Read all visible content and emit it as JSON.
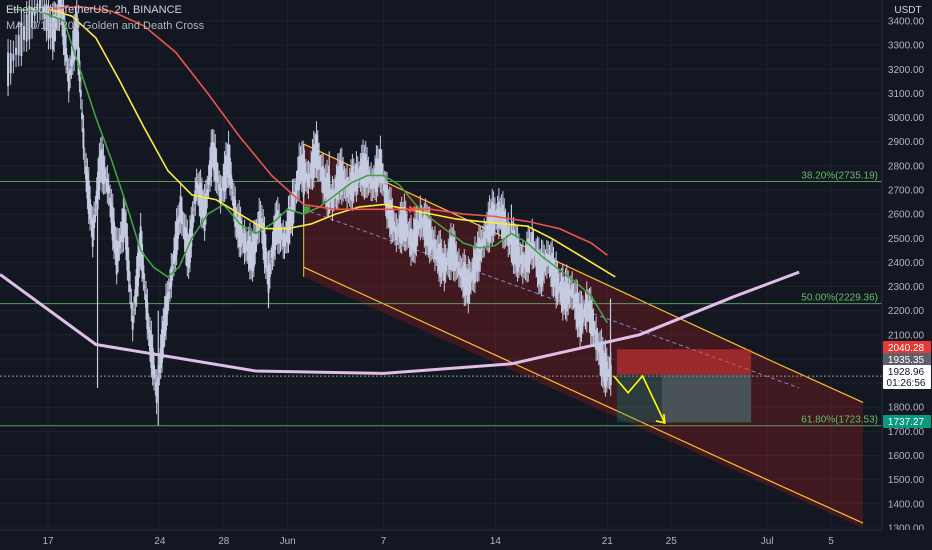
{
  "header": {
    "symbol_line": "Ethereum / TetherUS, 2h, BINANCE",
    "indicator_line": "MA 50/100/200 Golden and Death Cross"
  },
  "price_axis": {
    "currency": "USDT",
    "ticks": [
      "3400.00",
      "3300.00",
      "3200.00",
      "3100.00",
      "3000.00",
      "2900.00",
      "2800.00",
      "2700.00",
      "2600.00",
      "2500.00",
      "2400.00",
      "2300.00",
      "2200.00",
      "2100.00",
      "2000.00",
      "1900.00",
      "1800.00",
      "1700.00",
      "1600.00",
      "1500.00",
      "1400.00",
      "1300.00"
    ],
    "tags": [
      {
        "value": 2040.28,
        "label": "2040.28",
        "color": "#e53935"
      },
      {
        "value": 1935.35,
        "label": "1935.35",
        "color": "#5d606b"
      },
      {
        "value": 1928.96,
        "label": "1928.96",
        "sub": "01:26:56",
        "color": "#ffffff"
      },
      {
        "value": 1737.27,
        "label": "1737.27",
        "color": "#089981"
      }
    ]
  },
  "time_axis": {
    "ticks": [
      {
        "day": 17,
        "label": "17"
      },
      {
        "day": 24,
        "label": "24"
      },
      {
        "day": 28,
        "label": "28"
      },
      {
        "day": 32,
        "label": "Jun"
      },
      {
        "day": 38,
        "label": "7"
      },
      {
        "day": 45,
        "label": "14"
      },
      {
        "day": 52,
        "label": "21"
      },
      {
        "day": 56,
        "label": "25"
      },
      {
        "day": 62,
        "label": "Jul"
      },
      {
        "day": 66,
        "label": "5"
      }
    ]
  },
  "colors": {
    "background": "#131722",
    "candles": "#c5cbe0",
    "ma50": "#43a047",
    "ma100": "#ffeb3b",
    "ma200": "#ef5350",
    "arc": "#e1bee7",
    "channel": "#fbc02d",
    "fib": "#66bb6a",
    "projection": "#ffff00"
  },
  "chart_data": {
    "type": "candlestick",
    "symbol": "ETH/USDT",
    "timeframe": "2h",
    "ylim": [
      1300,
      3450
    ],
    "xlim": [
      14,
      68
    ],
    "price_path": [
      [
        14.5,
        3200
      ],
      [
        15.5,
        3350
      ],
      [
        16.5,
        3480
      ],
      [
        17.3,
        3350
      ],
      [
        17.8,
        3480
      ],
      [
        18.3,
        3150
      ],
      [
        18.8,
        3380
      ],
      [
        19.3,
        2820
      ],
      [
        19.8,
        2520
      ],
      [
        20.3,
        2820
      ],
      [
        20.8,
        2700
      ],
      [
        21.3,
        2420
      ],
      [
        21.8,
        2580
      ],
      [
        22.3,
        2150
      ],
      [
        22.8,
        2480
      ],
      [
        23.3,
        2120
      ],
      [
        23.8,
        1860
      ],
      [
        24.3,
        2150
      ],
      [
        24.8,
        2380
      ],
      [
        25.3,
        2620
      ],
      [
        25.8,
        2420
      ],
      [
        26.3,
        2720
      ],
      [
        26.8,
        2600
      ],
      [
        27.3,
        2870
      ],
      [
        27.8,
        2680
      ],
      [
        28.3,
        2820
      ],
      [
        28.8,
        2560
      ],
      [
        29.3,
        2480
      ],
      [
        29.8,
        2420
      ],
      [
        30.3,
        2600
      ],
      [
        30.8,
        2330
      ],
      [
        31.3,
        2560
      ],
      [
        31.8,
        2480
      ],
      [
        32.3,
        2620
      ],
      [
        32.8,
        2800
      ],
      [
        33.3,
        2740
      ],
      [
        33.8,
        2860
      ],
      [
        34.3,
        2720
      ],
      [
        34.8,
        2660
      ],
      [
        35.3,
        2760
      ],
      [
        35.8,
        2700
      ],
      [
        36.3,
        2750
      ],
      [
        36.8,
        2790
      ],
      [
        37.3,
        2720
      ],
      [
        37.8,
        2800
      ],
      [
        38.3,
        2620
      ],
      [
        38.8,
        2520
      ],
      [
        39.3,
        2560
      ],
      [
        39.8,
        2470
      ],
      [
        40.3,
        2580
      ],
      [
        40.8,
        2520
      ],
      [
        41.3,
        2440
      ],
      [
        41.8,
        2380
      ],
      [
        42.3,
        2450
      ],
      [
        42.8,
        2360
      ],
      [
        43.3,
        2300
      ],
      [
        43.8,
        2400
      ],
      [
        44.3,
        2500
      ],
      [
        44.8,
        2580
      ],
      [
        45.3,
        2600
      ],
      [
        45.8,
        2510
      ],
      [
        46.3,
        2440
      ],
      [
        46.8,
        2390
      ],
      [
        47.3,
        2470
      ],
      [
        47.8,
        2360
      ],
      [
        48.3,
        2420
      ],
      [
        48.8,
        2320
      ],
      [
        49.3,
        2260
      ],
      [
        49.8,
        2280
      ],
      [
        50.3,
        2160
      ],
      [
        50.8,
        2220
      ],
      [
        51.3,
        2080
      ],
      [
        51.8,
        1960
      ],
      [
        52.3,
        1928.96
      ]
    ],
    "candle_wicks": [
      [
        20.1,
        1880,
        2700
      ],
      [
        23.9,
        1723,
        2200
      ],
      [
        30.8,
        2210,
        2450
      ],
      [
        33.0,
        2560,
        2890
      ],
      [
        34.6,
        2600,
        2860
      ],
      [
        36.8,
        2660,
        2850
      ],
      [
        46.0,
        2400,
        2640
      ],
      [
        52.2,
        1900,
        2250
      ]
    ],
    "series": [
      {
        "name": "MA 50",
        "color": "#43a047",
        "points": [
          [
            14.5,
            3450
          ],
          [
            16.5,
            3440
          ],
          [
            18,
            3400
          ],
          [
            19,
            3200
          ],
          [
            20,
            3000
          ],
          [
            21,
            2820
          ],
          [
            22,
            2620
          ],
          [
            22.8,
            2450
          ],
          [
            23.6,
            2380
          ],
          [
            24.5,
            2340
          ],
          [
            25.2,
            2380
          ],
          [
            26,
            2500
          ],
          [
            27,
            2600
          ],
          [
            28,
            2640
          ],
          [
            29,
            2560
          ],
          [
            30,
            2520
          ],
          [
            31,
            2560
          ],
          [
            32,
            2620
          ],
          [
            33,
            2600
          ],
          [
            34,
            2630
          ],
          [
            35,
            2680
          ],
          [
            36,
            2730
          ],
          [
            37,
            2760
          ],
          [
            38,
            2760
          ],
          [
            39,
            2720
          ],
          [
            40,
            2640
          ],
          [
            41,
            2580
          ],
          [
            42,
            2530
          ],
          [
            43,
            2480
          ],
          [
            44,
            2460
          ],
          [
            45,
            2470
          ],
          [
            46,
            2520
          ],
          [
            47,
            2480
          ],
          [
            48,
            2420
          ],
          [
            49,
            2370
          ],
          [
            50,
            2320
          ],
          [
            51,
            2260
          ],
          [
            52,
            2150
          ]
        ]
      },
      {
        "name": "MA 100",
        "color": "#ffeb3b",
        "points": [
          [
            17,
            3450
          ],
          [
            18.5,
            3420
          ],
          [
            20,
            3330
          ],
          [
            21.5,
            3150
          ],
          [
            23,
            2960
          ],
          [
            24.5,
            2780
          ],
          [
            26,
            2680
          ],
          [
            27.5,
            2660
          ],
          [
            29,
            2600
          ],
          [
            30.5,
            2540
          ],
          [
            32,
            2540
          ],
          [
            33.5,
            2560
          ],
          [
            35,
            2600
          ],
          [
            36.5,
            2630
          ],
          [
            38,
            2640
          ],
          [
            39.5,
            2620
          ],
          [
            41,
            2600
          ],
          [
            42.5,
            2580
          ],
          [
            44,
            2570
          ],
          [
            45.5,
            2560
          ],
          [
            47,
            2550
          ],
          [
            48.5,
            2500
          ],
          [
            50,
            2440
          ],
          [
            51.5,
            2380
          ],
          [
            52.5,
            2340
          ]
        ]
      },
      {
        "name": "MA 200",
        "color": "#ef5350",
        "points": [
          [
            17,
            3450
          ],
          [
            19,
            3460
          ],
          [
            21,
            3440
          ],
          [
            23,
            3380
          ],
          [
            25,
            3270
          ],
          [
            27,
            3100
          ],
          [
            29,
            2920
          ],
          [
            31,
            2760
          ],
          [
            33,
            2640
          ],
          [
            35,
            2620
          ],
          [
            37,
            2620
          ],
          [
            39,
            2620
          ],
          [
            41,
            2620
          ],
          [
            43,
            2600
          ],
          [
            45,
            2590
          ],
          [
            47,
            2570
          ],
          [
            49,
            2540
          ],
          [
            51,
            2480
          ],
          [
            52,
            2430
          ]
        ]
      }
    ],
    "channel": {
      "upper": [
        [
          33.0,
          2890
        ],
        [
          62.0,
          2000
        ],
        [
          68.0,
          1820
        ]
      ],
      "lower": [
        [
          33.0,
          2380
        ],
        [
          62.0,
          1500
        ],
        [
          68.0,
          1320
        ]
      ],
      "shade_to": [
        [
          33.0,
          2340
        ],
        [
          68.0,
          1300
        ]
      ]
    },
    "mid_dashed": [
      [
        33.0,
        2620
      ],
      [
        64.0,
        1880
      ]
    ],
    "arc": [
      [
        14.0,
        2350
      ],
      [
        20.0,
        2060
      ],
      [
        30.0,
        1950
      ],
      [
        38.0,
        1940
      ],
      [
        46.0,
        1980
      ],
      [
        54.0,
        2100
      ],
      [
        60.0,
        2260
      ],
      [
        64.0,
        2360
      ]
    ],
    "fib_levels": [
      {
        "label": "38.20%(2735.19)",
        "value": 2735.19
      },
      {
        "label": "50.00%(2229.36)",
        "value": 2229.36
      },
      {
        "label": "61.80%(1723.53)",
        "value": 1723.53
      }
    ],
    "position": {
      "entry": 1935.35,
      "stop": 2040.28,
      "target": 1737.27,
      "x_start": 52.6,
      "x_end": 61.0
    },
    "projection": [
      [
        52.4,
        1930
      ],
      [
        53.3,
        1860
      ],
      [
        54.2,
        1930
      ],
      [
        55.6,
        1735
      ]
    ],
    "golden_cross_marker": {
      "day": 33.2,
      "value": 2620,
      "color": "#43a047"
    },
    "death_cross_marker": {
      "day": 39.8,
      "value": 2620,
      "color": "#ef5350"
    }
  }
}
